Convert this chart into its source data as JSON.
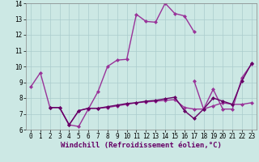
{
  "xlabel": "Windchill (Refroidissement éolien,°C)",
  "background_color": "#cce8e4",
  "grid_color": "#aacccc",
  "line_colors": [
    "#993399",
    "#993399",
    "#993399",
    "#660066"
  ],
  "xlim": [
    -0.5,
    23.5
  ],
  "ylim": [
    6,
    14
  ],
  "xticks": [
    0,
    1,
    2,
    3,
    4,
    5,
    6,
    7,
    8,
    9,
    10,
    11,
    12,
    13,
    14,
    15,
    16,
    17,
    18,
    19,
    20,
    21,
    22,
    23
  ],
  "yticks": [
    6,
    7,
    8,
    9,
    10,
    11,
    12,
    13,
    14
  ],
  "series": [
    {
      "x": [
        0,
        1,
        2,
        3,
        4,
        5,
        6,
        7,
        8,
        9,
        10,
        11,
        12,
        13,
        14,
        15,
        16,
        17
      ],
      "y": [
        8.7,
        9.6,
        7.4,
        7.4,
        6.3,
        6.2,
        7.3,
        8.4,
        10.0,
        10.4,
        10.45,
        13.3,
        12.85,
        12.8,
        14.0,
        13.35,
        13.2,
        12.2
      ]
    },
    {
      "x": [
        17,
        18,
        19,
        20,
        21,
        22,
        23
      ],
      "y": [
        9.1,
        7.3,
        8.55,
        7.3,
        7.3,
        9.3,
        10.15
      ]
    },
    {
      "x": [
        2,
        3,
        4,
        5,
        6,
        7,
        8,
        9,
        10,
        11,
        12,
        13,
        14,
        15,
        16,
        17,
        18,
        19,
        20,
        21,
        22,
        23
      ],
      "y": [
        7.4,
        7.4,
        6.3,
        7.2,
        7.35,
        7.35,
        7.4,
        7.5,
        7.6,
        7.7,
        7.75,
        7.8,
        7.85,
        7.9,
        7.4,
        7.3,
        7.3,
        7.5,
        7.7,
        7.6,
        7.6,
        7.7
      ]
    },
    {
      "x": [
        2,
        3,
        4,
        5,
        6,
        7,
        8,
        9,
        10,
        11,
        12,
        13,
        14,
        15,
        16,
        17,
        18,
        19,
        20,
        21,
        22,
        23
      ],
      "y": [
        7.4,
        7.4,
        6.3,
        7.2,
        7.35,
        7.35,
        7.45,
        7.55,
        7.65,
        7.7,
        7.8,
        7.85,
        7.95,
        8.05,
        7.2,
        6.7,
        7.3,
        8.0,
        7.8,
        7.6,
        9.1,
        10.2
      ]
    }
  ],
  "marker": "D",
  "markersize": 2,
  "linewidth": 1.0,
  "tick_fontsize": 5.5,
  "label_fontsize": 6.5
}
